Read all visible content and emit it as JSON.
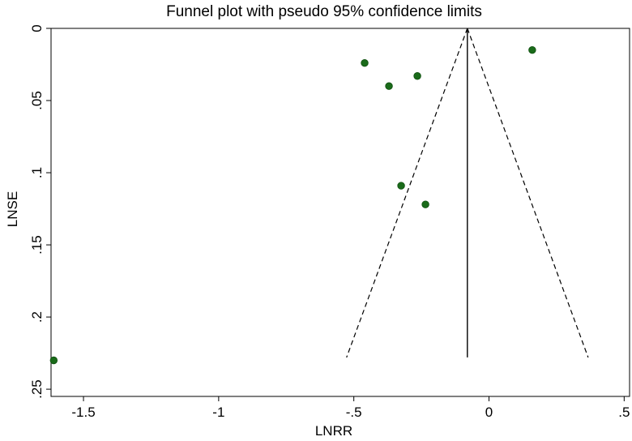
{
  "chart_data": {
    "type": "scatter",
    "title": "Funnel plot with pseudo 95% confidence limits",
    "xlabel": "LNRR",
    "ylabel": "LNSE",
    "xlim": [
      -1.62,
      0.52
    ],
    "ylim": [
      0,
      0.255
    ],
    "y_reversed": true,
    "x_ticks": [
      -1.5,
      -1,
      -0.5,
      0,
      0.5
    ],
    "x_tick_labels": [
      "-1.5",
      "-1",
      "-.5",
      "0",
      ".5"
    ],
    "y_ticks": [
      0,
      0.05,
      0.1,
      0.15,
      0.2,
      0.25
    ],
    "y_tick_labels": [
      "0",
      ".05",
      ".1",
      ".15",
      ".2",
      ".25"
    ],
    "grid": false,
    "marker_color": "#1a6b1a",
    "points": [
      {
        "x": -0.46,
        "y": 0.024
      },
      {
        "x": -0.37,
        "y": 0.04
      },
      {
        "x": -0.265,
        "y": 0.033
      },
      {
        "x": 0.16,
        "y": 0.015
      },
      {
        "x": -0.325,
        "y": 0.109
      },
      {
        "x": -0.235,
        "y": 0.122
      },
      {
        "x": -1.61,
        "y": 0.23
      }
    ],
    "pooled_estimate": -0.08,
    "funnel_se_max": 0.228
  }
}
